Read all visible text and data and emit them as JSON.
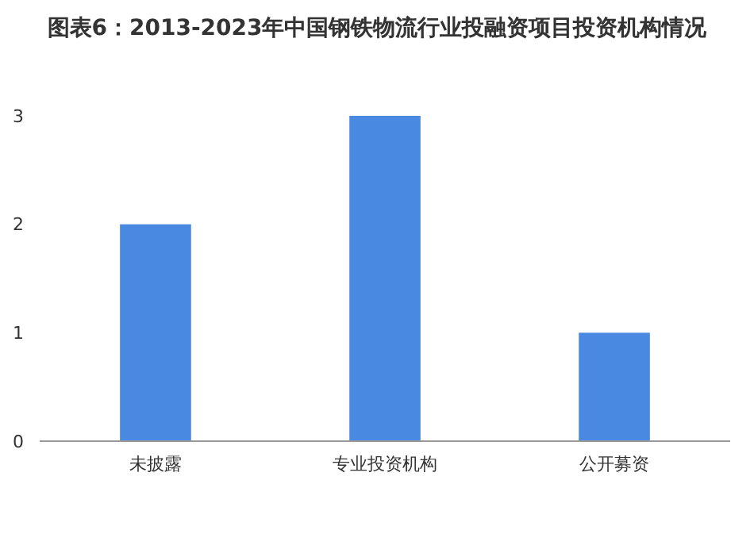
{
  "chart_data": {
    "type": "bar",
    "title": "图表6：2013-2023年中国钢铁物流行业投融资项目投资机构情况",
    "categories": [
      "未披露",
      "专业投资机构",
      "公开募资"
    ],
    "values": [
      2,
      3,
      1
    ],
    "color": "#4a89e2",
    "ylim": [
      0,
      3
    ],
    "yticks": [
      0,
      1,
      2,
      3
    ],
    "grid": false
  }
}
